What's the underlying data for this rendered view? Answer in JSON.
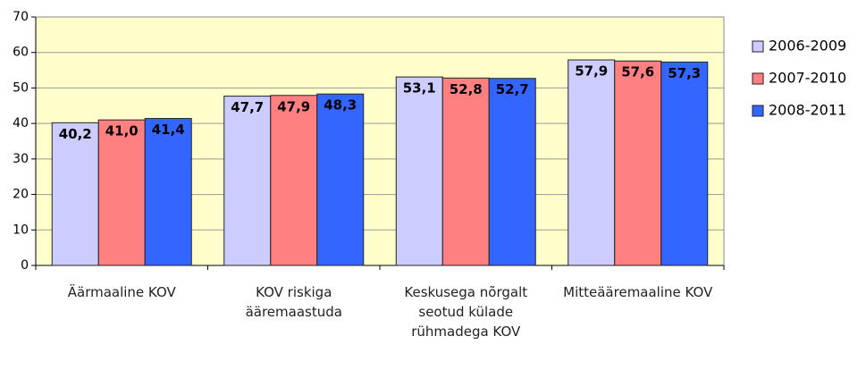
{
  "chart_data": {
    "type": "bar",
    "categories": [
      "Äärmaaline KOV",
      "KOV riskiga ääremaastuda",
      "Keskusega nõrgalt seotud külade rühmadega KOV",
      "Mitteääremaaline KOV"
    ],
    "series": [
      {
        "name": "2006-2009",
        "color": "#ccccff",
        "values": [
          40.2,
          47.7,
          53.1,
          57.9
        ],
        "value_labels": [
          "40,2",
          "47,7",
          "53,1",
          "57,9"
        ]
      },
      {
        "name": "2007-2010",
        "color": "#ff8080",
        "values": [
          41.0,
          47.9,
          52.8,
          57.6
        ],
        "value_labels": [
          "41,0",
          "47,9",
          "52,8",
          "57,6"
        ]
      },
      {
        "name": "2008-2011",
        "color": "#3366ff",
        "values": [
          41.4,
          48.3,
          52.7,
          57.3
        ],
        "value_labels": [
          "41,4",
          "48,3",
          "52,7",
          "57,3"
        ]
      }
    ],
    "ylim": [
      0,
      70
    ],
    "yticks": [
      0,
      10,
      20,
      30,
      40,
      50,
      60,
      70
    ],
    "grid": true,
    "legend": "right",
    "background": "#ffffcc"
  }
}
